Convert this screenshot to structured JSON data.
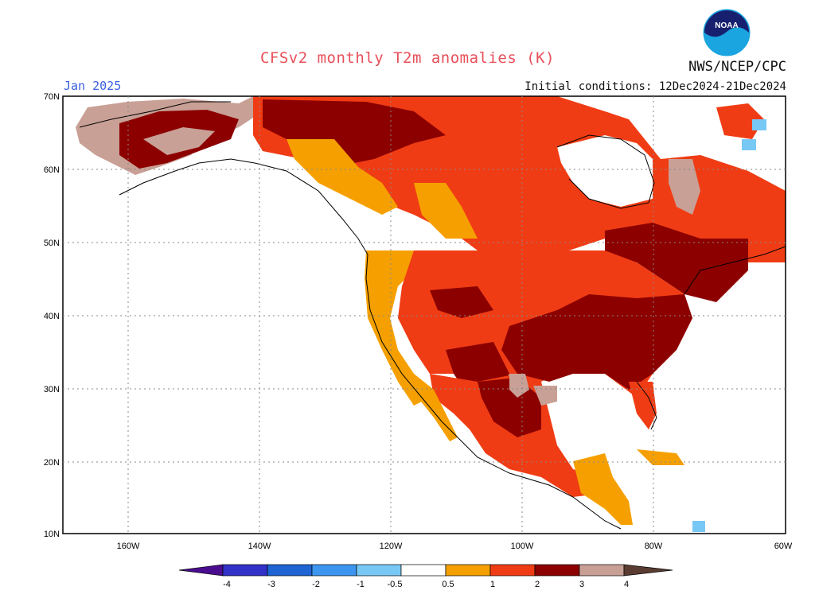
{
  "title": "CFSv2 monthly T2m anomalies (K)",
  "agency": "NWS/NCEP/CPC",
  "logo_text": "NOAA",
  "month": "Jan 2025",
  "initial_conditions": "Initial conditions: 12Dec2024-21Dec2024",
  "lat_labels": [
    "70N",
    "60N",
    "50N",
    "40N",
    "30N",
    "20N",
    "10N"
  ],
  "lon_labels": [
    "160W",
    "140W",
    "120W",
    "100W",
    "80W",
    "60W"
  ],
  "legend": {
    "ticks": [
      "-4",
      "-3",
      "-2",
      "-1",
      "-0.5",
      "0.5",
      "1",
      "2",
      "3",
      "4"
    ],
    "colors": [
      "#4b0d8f",
      "#3232c8",
      "#1e64d2",
      "#3c96f0",
      "#78c8f5",
      "#ffffff",
      "#f5a000",
      "#f03c14",
      "#8c0000",
      "#c8a096",
      "#5a3c32"
    ]
  },
  "colors": {
    "title": "#e8505a",
    "month": "#3a5fe0",
    "anomaly_0_5_to_1": "#f5a000",
    "anomaly_1_to_2": "#f03c14",
    "anomaly_2_to_3": "#8c0000",
    "anomaly_3_to_4": "#c8a096",
    "anomaly_neg": "#78c8f5"
  }
}
